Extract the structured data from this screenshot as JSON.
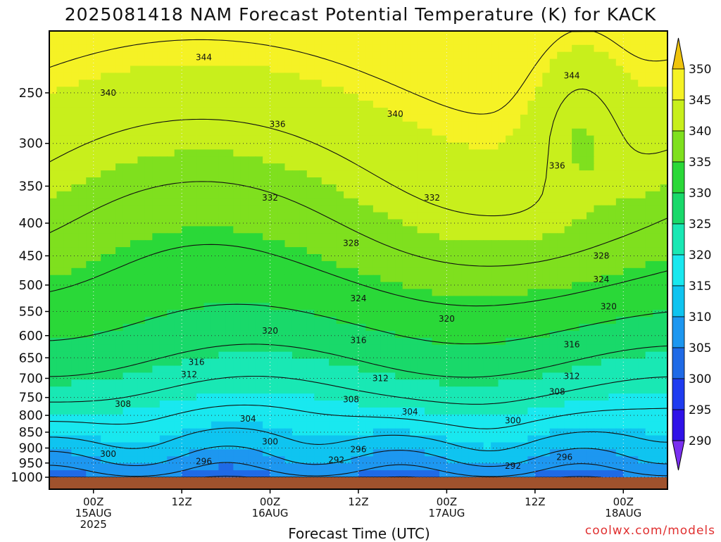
{
  "chart_data": {
    "type": "heatmap",
    "title": "2025081418 NAM Forecast Potential Temperature (K) for KACK",
    "xlabel": "Forecast Time (UTC)",
    "ylabel": "",
    "x_ticks": [
      {
        "hour": 6,
        "lines": [
          "00Z",
          "15AUG",
          "2025"
        ]
      },
      {
        "hour": 18,
        "lines": [
          "12Z"
        ]
      },
      {
        "hour": 30,
        "lines": [
          "00Z",
          "16AUG"
        ]
      },
      {
        "hour": 42,
        "lines": [
          "12Z"
        ]
      },
      {
        "hour": 54,
        "lines": [
          "00Z",
          "17AUG"
        ]
      },
      {
        "hour": 66,
        "lines": [
          "12Z"
        ]
      },
      {
        "hour": 78,
        "lines": [
          "00Z",
          "18AUG"
        ]
      }
    ],
    "xlim": [
      0,
      84
    ],
    "y_levels_hPa": [
      250,
      300,
      350,
      400,
      450,
      500,
      550,
      600,
      650,
      700,
      750,
      800,
      850,
      900,
      950,
      1000
    ],
    "ylim_hPa": [
      200,
      1000
    ],
    "y_scale": "log",
    "colorbar": {
      "levels": [
        290,
        295,
        300,
        305,
        310,
        315,
        320,
        325,
        330,
        335,
        340,
        345,
        350
      ],
      "colors": [
        "#7a2ff0",
        "#2f12e8",
        "#1f3cf0",
        "#1f6ae6",
        "#1d97f0",
        "#0fc4f0",
        "#19e8ef",
        "#19e8b4",
        "#19d96a",
        "#2ad838",
        "#7fe01e",
        "#c8ef1c",
        "#f5f225",
        "#f0c40c"
      ]
    },
    "contour_labels": [
      {
        "value": "344",
        "hour": 21,
        "hPa": 220
      },
      {
        "value": "344",
        "hour": 71,
        "hPa": 235
      },
      {
        "value": "340",
        "hour": 8,
        "hPa": 250
      },
      {
        "value": "340",
        "hour": 47,
        "hPa": 270
      },
      {
        "value": "336",
        "hour": 31,
        "hPa": 280
      },
      {
        "value": "336",
        "hour": 69,
        "hPa": 325
      },
      {
        "value": "332",
        "hour": 30,
        "hPa": 365
      },
      {
        "value": "332",
        "hour": 52,
        "hPa": 365
      },
      {
        "value": "328",
        "hour": 41,
        "hPa": 430
      },
      {
        "value": "328",
        "hour": 75,
        "hPa": 450
      },
      {
        "value": "324",
        "hour": 42,
        "hPa": 525
      },
      {
        "value": "324",
        "hour": 75,
        "hPa": 490
      },
      {
        "value": "320",
        "hour": 54,
        "hPa": 565
      },
      {
        "value": "320",
        "hour": 76,
        "hPa": 540
      },
      {
        "value": "320",
        "hour": 30,
        "hPa": 590
      },
      {
        "value": "316",
        "hour": 42,
        "hPa": 610
      },
      {
        "value": "316",
        "hour": 71,
        "hPa": 620
      },
      {
        "value": "316",
        "hour": 20,
        "hPa": 660
      },
      {
        "value": "312",
        "hour": 19,
        "hPa": 690
      },
      {
        "value": "312",
        "hour": 45,
        "hPa": 700
      },
      {
        "value": "312",
        "hour": 71,
        "hPa": 695
      },
      {
        "value": "308",
        "hour": 41,
        "hPa": 755
      },
      {
        "value": "308",
        "hour": 69,
        "hPa": 735
      },
      {
        "value": "308",
        "hour": 10,
        "hPa": 768
      },
      {
        "value": "304",
        "hour": 27,
        "hPa": 810
      },
      {
        "value": "304",
        "hour": 49,
        "hPa": 790
      },
      {
        "value": "300",
        "hour": 63,
        "hPa": 815
      },
      {
        "value": "300",
        "hour": 30,
        "hPa": 880
      },
      {
        "value": "300",
        "hour": 8,
        "hPa": 920
      },
      {
        "value": "296",
        "hour": 42,
        "hPa": 905
      },
      {
        "value": "296",
        "hour": 21,
        "hPa": 945
      },
      {
        "value": "296",
        "hour": 70,
        "hPa": 930
      },
      {
        "value": "292",
        "hour": 39,
        "hPa": 940
      },
      {
        "value": "292",
        "hour": 63,
        "hPa": 960
      }
    ]
  },
  "credit": "coolwx.com/models"
}
